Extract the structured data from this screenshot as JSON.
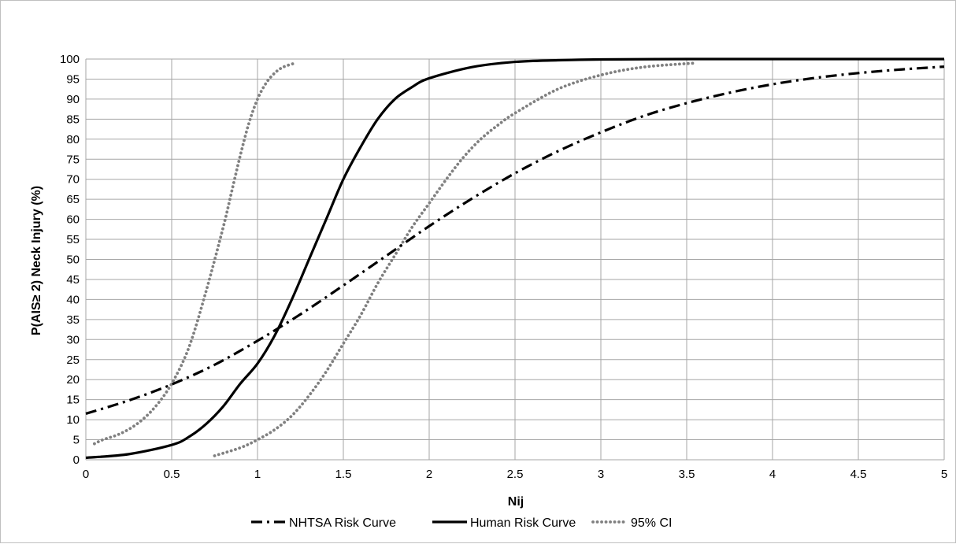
{
  "chart_data": {
    "type": "line",
    "title": "",
    "xlabel": "Nij",
    "ylabel": "P(AIS≥ 2) Neck Injury (%)",
    "xlim": [
      0,
      5
    ],
    "ylim": [
      0,
      100
    ],
    "x_ticks": [
      0,
      0.5,
      1,
      1.5,
      2,
      2.5,
      3,
      3.5,
      4,
      4.5,
      5
    ],
    "y_ticks": [
      0,
      5,
      10,
      15,
      20,
      25,
      30,
      35,
      40,
      45,
      50,
      55,
      60,
      65,
      70,
      75,
      80,
      85,
      90,
      95,
      100
    ],
    "grid": true,
    "legend_position": "bottom",
    "series": [
      {
        "name": "NHTSA Risk Curve",
        "style": "dashdot",
        "color": "#000000",
        "x": [
          0,
          0.25,
          0.5,
          0.75,
          1,
          1.25,
          1.5,
          1.75,
          2,
          2.25,
          2.5,
          2.75,
          3,
          3.25,
          3.5,
          3.75,
          4,
          4.25,
          4.5,
          4.75,
          5
        ],
        "y": [
          11.5,
          14.8,
          18.8,
          23.7,
          29.7,
          36.3,
          43.5,
          50.9,
          58.3,
          65.2,
          71.5,
          77.0,
          81.7,
          85.8,
          89.0,
          91.6,
          93.7,
          95.3,
          96.5,
          97.4,
          98.1
        ]
      },
      {
        "name": "Human Risk Curve",
        "style": "solid",
        "color": "#000000",
        "x": [
          0,
          0.25,
          0.5,
          0.6,
          0.7,
          0.8,
          0.9,
          1.0,
          1.1,
          1.2,
          1.3,
          1.4,
          1.5,
          1.6,
          1.7,
          1.8,
          1.9,
          2.0,
          2.25,
          2.5,
          2.75,
          3,
          3.5,
          4,
          4.5,
          5
        ],
        "y": [
          0.5,
          1.4,
          3.7,
          5.7,
          8.9,
          13.3,
          19.0,
          24.0,
          31.0,
          40.0,
          50.0,
          60.0,
          70.0,
          78.0,
          85.0,
          90.0,
          93.0,
          95.2,
          98.0,
          99.3,
          99.7,
          99.9,
          100,
          100,
          100,
          100
        ]
      },
      {
        "name": "95% CI",
        "style": "dotted",
        "color": "#808080",
        "x": [
          0.05,
          0.1,
          0.2,
          0.3,
          0.4,
          0.5,
          0.6,
          0.7,
          0.8,
          0.85,
          0.9,
          0.95,
          1.0,
          1.05,
          1.1,
          1.15,
          1.22
        ],
        "y": [
          4,
          5,
          6.5,
          9,
          13,
          19,
          28,
          42,
          58,
          67,
          76,
          84,
          90,
          94,
          96.5,
          98,
          99
        ]
      },
      {
        "name": "95% CI",
        "style": "dotted",
        "color": "#808080",
        "x": [
          0.75,
          0.9,
          1.0,
          1.1,
          1.2,
          1.3,
          1.4,
          1.5,
          1.6,
          1.7,
          1.8,
          1.9,
          2.0,
          2.1,
          2.2,
          2.3,
          2.4,
          2.5,
          2.75,
          3.0,
          3.25,
          3.55
        ],
        "y": [
          1,
          3,
          5,
          7.5,
          11,
          16,
          22,
          29,
          36,
          44,
          51,
          58,
          64,
          70,
          75.5,
          80,
          83.5,
          86.5,
          92.5,
          96,
          98,
          99
        ]
      }
    ]
  }
}
